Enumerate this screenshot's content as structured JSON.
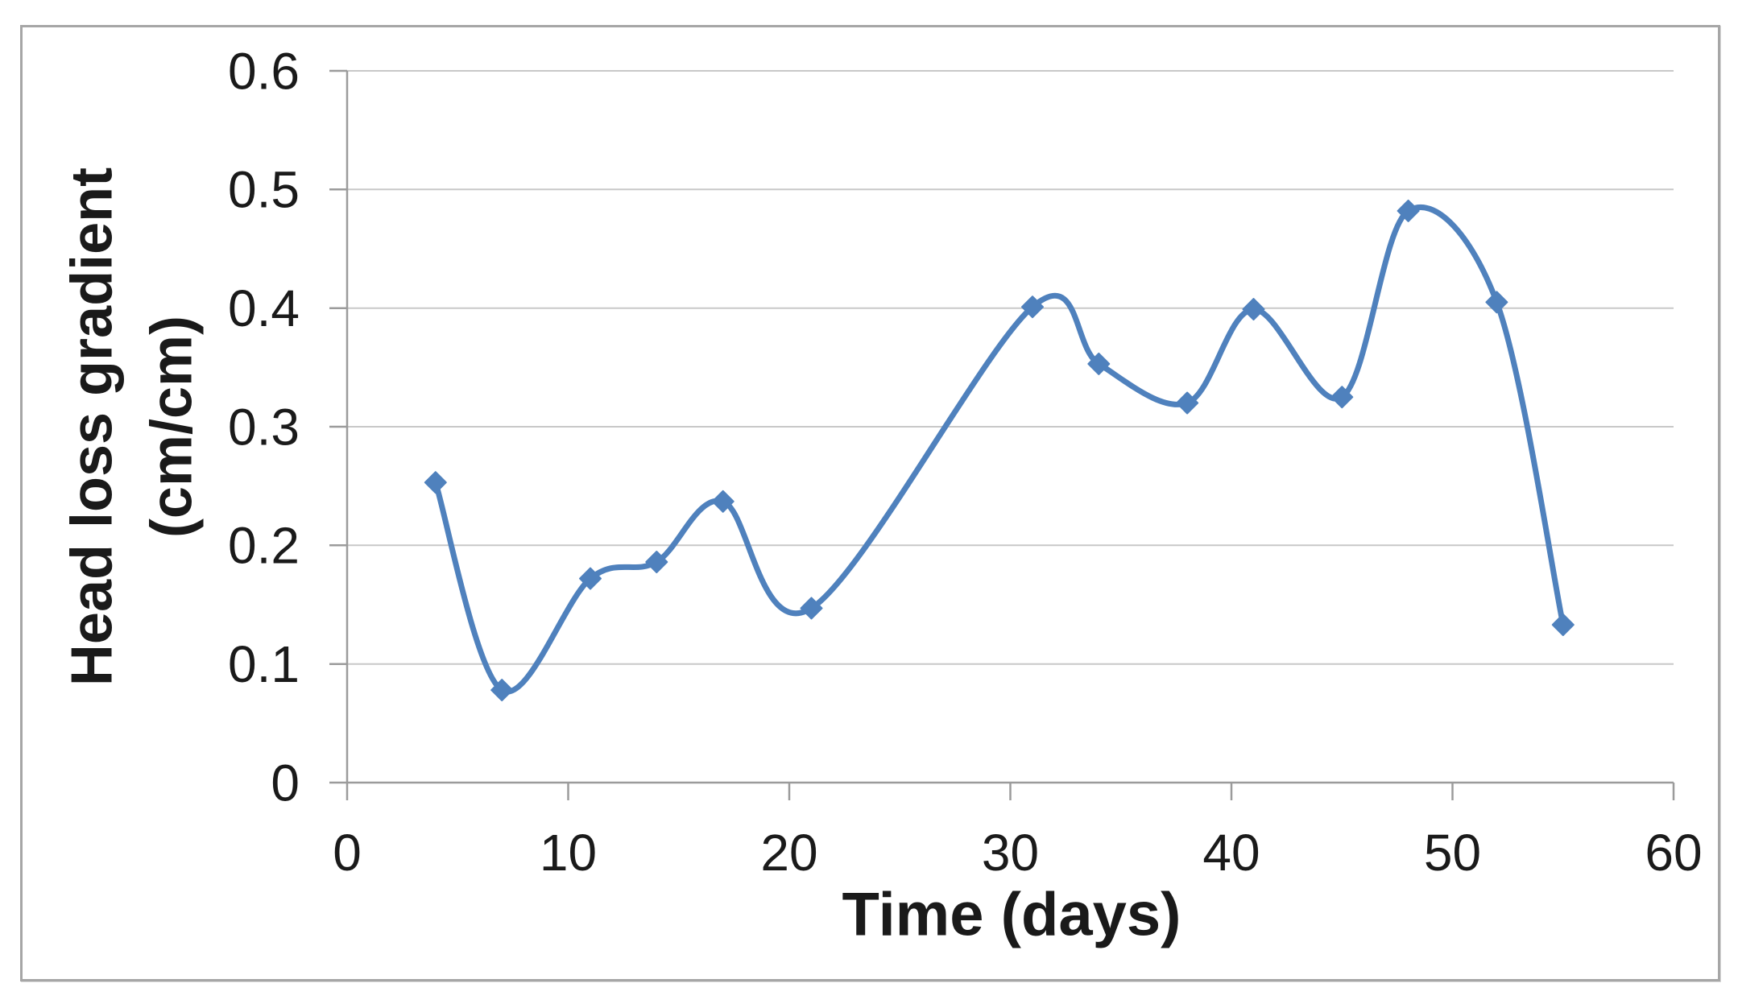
{
  "chart_data": {
    "type": "line",
    "title": "",
    "xlabel": "Time (days)",
    "ylabel": "Head loss gradient (cm/cm)",
    "ylabel_lines": [
      "Head loss gradient",
      "(cm/cm)"
    ],
    "x": [
      4,
      7,
      11,
      14,
      17,
      21,
      31,
      34,
      38,
      41,
      45,
      48,
      52,
      55
    ],
    "y": [
      0.253,
      0.078,
      0.172,
      0.186,
      0.237,
      0.147,
      0.401,
      0.353,
      0.32,
      0.399,
      0.325,
      0.482,
      0.405,
      0.133
    ],
    "xlim": [
      0,
      60
    ],
    "ylim": [
      0,
      0.6
    ],
    "x_ticks": [
      0,
      10,
      20,
      30,
      40,
      50,
      60
    ],
    "x_tick_labels": [
      "0",
      "10",
      "20",
      "30",
      "40",
      "50",
      "60"
    ],
    "y_ticks": [
      0,
      0.1,
      0.2,
      0.3,
      0.4,
      0.5,
      0.6
    ],
    "y_tick_labels": [
      "0",
      "0.1",
      "0.2",
      "0.3",
      "0.4",
      "0.5",
      "0.6"
    ],
    "grid": "horizontal",
    "legend": "none",
    "smooth": true,
    "marker": "diamond"
  },
  "colors": {
    "series": "#4F81BD",
    "gridline": "#c8c8c8",
    "axis": "#9b9b9b",
    "frame_border": "#a6a6a6",
    "text": "#1a1a1a",
    "background": "#ffffff"
  }
}
